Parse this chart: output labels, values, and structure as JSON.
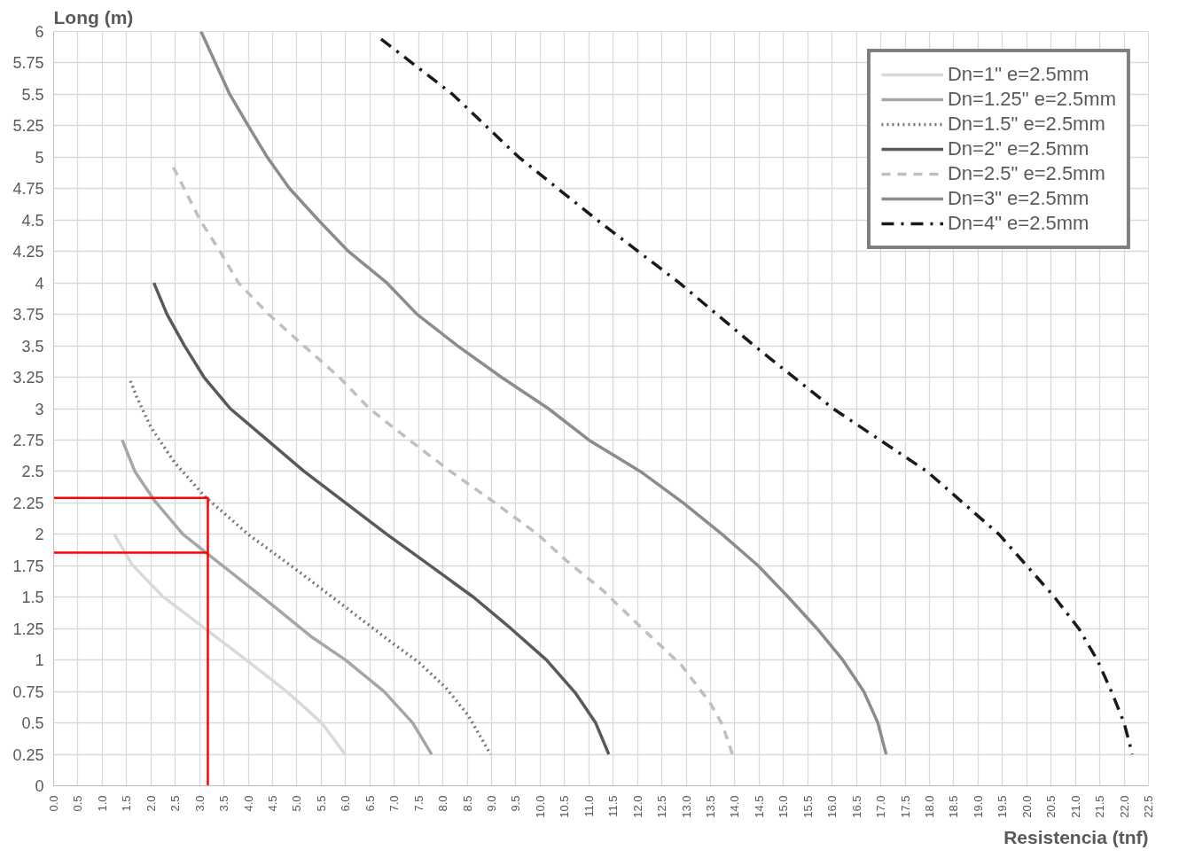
{
  "chart_data": {
    "type": "line",
    "xlabel": "Resistencia (tnf)",
    "ylabel": "Long (m)",
    "xlim": [
      0,
      22.5
    ],
    "ylim": [
      0,
      6
    ],
    "xticks": [
      {
        "value": 0,
        "label": "0.0"
      },
      {
        "value": 0.5,
        "label": "0.5"
      },
      {
        "value": 1,
        "label": "1.0"
      },
      {
        "value": 1.5,
        "label": "1.5"
      },
      {
        "value": 2,
        "label": "2.0"
      },
      {
        "value": 2.5,
        "label": "2.5"
      },
      {
        "value": 3,
        "label": "3.0"
      },
      {
        "value": 3.5,
        "label": "3.5"
      },
      {
        "value": 4,
        "label": "4.0"
      },
      {
        "value": 4.5,
        "label": "4.5"
      },
      {
        "value": 5,
        "label": "5.0"
      },
      {
        "value": 5.5,
        "label": "5.5"
      },
      {
        "value": 6,
        "label": "6.0"
      },
      {
        "value": 6.5,
        "label": "6.5"
      },
      {
        "value": 7,
        "label": "7.0"
      },
      {
        "value": 7.5,
        "label": "7.5"
      },
      {
        "value": 8,
        "label": "8.0"
      },
      {
        "value": 8.5,
        "label": "8.5"
      },
      {
        "value": 9,
        "label": "9.0"
      },
      {
        "value": 9.5,
        "label": "9.5"
      },
      {
        "value": 10,
        "label": "10.0"
      },
      {
        "value": 10.5,
        "label": "10.5"
      },
      {
        "value": 11,
        "label": "11.0"
      },
      {
        "value": 11.5,
        "label": "11.5"
      },
      {
        "value": 12,
        "label": "12.0"
      },
      {
        "value": 12.5,
        "label": "12.5"
      },
      {
        "value": 13,
        "label": "13.0"
      },
      {
        "value": 13.5,
        "label": "13.5"
      },
      {
        "value": 14,
        "label": "14.0"
      },
      {
        "value": 14.5,
        "label": "14.5"
      },
      {
        "value": 15,
        "label": "15.0"
      },
      {
        "value": 15.5,
        "label": "15.5"
      },
      {
        "value": 16,
        "label": "16.0"
      },
      {
        "value": 16.5,
        "label": "16.5"
      },
      {
        "value": 17,
        "label": "17.0"
      },
      {
        "value": 17.5,
        "label": "17.5"
      },
      {
        "value": 18,
        "label": "18.0"
      },
      {
        "value": 18.5,
        "label": "18.5"
      },
      {
        "value": 19,
        "label": "19.0"
      },
      {
        "value": 19.5,
        "label": "19.5"
      },
      {
        "value": 20,
        "label": "20.0"
      },
      {
        "value": 20.5,
        "label": "20.5"
      },
      {
        "value": 21,
        "label": "21.0"
      },
      {
        "value": 21.5,
        "label": "21.5"
      },
      {
        "value": 22,
        "label": "22.0"
      },
      {
        "value": 22.5,
        "label": "22.5"
      }
    ],
    "yticks": [
      0,
      0.25,
      0.5,
      0.75,
      1,
      1.25,
      1.5,
      1.75,
      2,
      2.25,
      2.5,
      2.75,
      3,
      3.25,
      3.5,
      3.75,
      4,
      4.25,
      4.5,
      4.75,
      5,
      5.25,
      5.5,
      5.75,
      6
    ],
    "grid": true,
    "legend": "top right",
    "marker": "none",
    "series": [
      {
        "name": "Dn=1\" e=2.5mm",
        "color": "#d9d9d9",
        "line_style": "solid",
        "x": [
          1.25,
          1.61,
          2.23,
          3.11,
          3.96,
          4.79,
          5.51,
          5.99
        ],
        "values": [
          2.0,
          1.76,
          1.51,
          1.25,
          1.0,
          0.75,
          0.5,
          0.25
        ]
      },
      {
        "name": "Dn=1.25\" e=2.5mm",
        "color": "#a6a6a6",
        "line_style": "solid",
        "x": [
          1.41,
          1.67,
          2.07,
          2.66,
          3.44,
          4.49,
          5.28,
          6.0,
          6.79,
          7.38,
          7.77
        ],
        "values": [
          2.75,
          2.5,
          2.27,
          2.0,
          1.76,
          1.44,
          1.19,
          1.0,
          0.75,
          0.5,
          0.25
        ]
      },
      {
        "name": "Dn=1.5\" e=2.5mm",
        "color": "#767676",
        "line_style": "dotted",
        "x": [
          1.58,
          1.71,
          2.0,
          2.49,
          3.11,
          4.03,
          4.95,
          6.0,
          6.98,
          7.51,
          8.06,
          8.52,
          8.98
        ],
        "values": [
          3.22,
          3.09,
          2.85,
          2.57,
          2.3,
          1.99,
          1.73,
          1.42,
          1.13,
          0.98,
          0.78,
          0.56,
          0.25
        ]
      },
      {
        "name": "Dn=2\" e=2.5mm",
        "color": "#595959",
        "line_style": "solid",
        "x": [
          2.06,
          2.33,
          2.69,
          3.09,
          3.63,
          4.39,
          5.15,
          6.0,
          6.85,
          7.67,
          8.63,
          9.4,
          10.13,
          10.72,
          11.14,
          11.41
        ],
        "values": [
          4.0,
          3.75,
          3.5,
          3.25,
          3.0,
          2.75,
          2.5,
          2.25,
          2.0,
          1.77,
          1.5,
          1.25,
          1.0,
          0.74,
          0.5,
          0.25
        ]
      },
      {
        "name": "Dn=2.5\" e=2.5mm",
        "color": "#bfbfbf",
        "line_style": "dashed",
        "x": [
          2.46,
          3.01,
          3.42,
          3.8,
          4.42,
          5.14,
          5.87,
          6.49,
          7.31,
          8.16,
          9.0,
          9.95,
          10.54,
          11.3,
          12.02,
          12.9,
          13.49,
          13.74,
          13.95
        ],
        "values": [
          4.92,
          4.5,
          4.25,
          4.0,
          3.75,
          3.5,
          3.25,
          3.0,
          2.75,
          2.5,
          2.27,
          2.0,
          1.79,
          1.55,
          1.28,
          0.96,
          0.66,
          0.49,
          0.25
        ]
      },
      {
        "name": "Dn=3\" e=2.5mm",
        "color": "#8c8c8c",
        "line_style": "solid",
        "x": [
          3.03,
          3.62,
          4.0,
          4.39,
          4.85,
          5.44,
          6.06,
          6.85,
          7.47,
          8.3,
          9.2,
          10.17,
          11.0,
          12.06,
          12.94,
          13.74,
          14.48,
          15.1,
          15.69,
          16.22,
          16.65,
          16.94,
          17.11
        ],
        "values": [
          6.0,
          5.5,
          5.25,
          5.0,
          4.75,
          4.5,
          4.25,
          4.0,
          3.75,
          3.5,
          3.25,
          3.0,
          2.75,
          2.5,
          2.25,
          2.0,
          1.75,
          1.5,
          1.25,
          1.0,
          0.75,
          0.5,
          0.25
        ]
      },
      {
        "name": "Dn=4\" e=2.5mm",
        "color": "#1a1a1a",
        "line_style": "dashdot",
        "x": [
          6.73,
          8.2,
          9.56,
          11.17,
          12.86,
          14.4,
          16.02,
          17.95,
          19.43,
          20.57,
          21.07,
          21.45,
          21.74,
          22.0,
          22.17
        ],
        "values": [
          5.94,
          5.5,
          5.0,
          4.5,
          4.0,
          3.5,
          3.0,
          2.5,
          2.0,
          1.5,
          1.25,
          1.0,
          0.75,
          0.5,
          0.25
        ]
      },
      {
        "color": "#ff0000",
        "line_style": "solid",
        "x": [
          0,
          3.17,
          3.17
        ],
        "values": [
          2.29,
          2.29,
          0
        ]
      },
      {
        "color": "#ff0000",
        "line_style": "solid",
        "x": [
          0,
          3.17
        ],
        "values": [
          1.855,
          1.855
        ]
      }
    ]
  }
}
